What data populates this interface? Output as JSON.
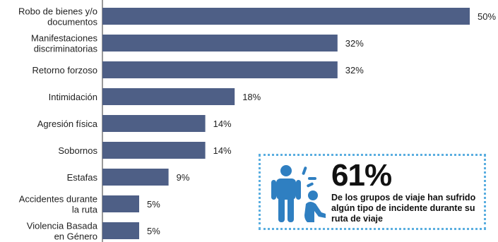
{
  "chart_data": {
    "type": "bar",
    "orientation": "horizontal",
    "categories": [
      [
        "Robo de bienes y/o",
        "documentos"
      ],
      [
        "Manifestaciones",
        "discriminatorias"
      ],
      [
        "Retorno forzoso"
      ],
      [
        "Intimidación"
      ],
      [
        "Agresión física"
      ],
      [
        "Sobornos"
      ],
      [
        "Estafas"
      ],
      [
        "Accidentes durante",
        "la ruta"
      ],
      [
        "Violencia Basada",
        "en Género"
      ]
    ],
    "values": [
      50,
      32,
      32,
      18,
      14,
      14,
      9,
      5,
      5
    ],
    "value_labels": [
      "50%",
      "32%",
      "32%",
      "18%",
      "14%",
      "14%",
      "9%",
      "5%",
      "5%"
    ],
    "unit": "%",
    "xlim": [
      0,
      50
    ],
    "bar_color": "#4e5f86",
    "title": "",
    "xlabel": "",
    "ylabel": ""
  },
  "callout": {
    "percent": "61%",
    "text": "De los grupos de viaje han sufrido algún tipo de incidente durante su ruta de viaje",
    "icon": "person-incident-icon",
    "icon_color": "#2f7fc1",
    "border_color": "#5aaee0"
  }
}
